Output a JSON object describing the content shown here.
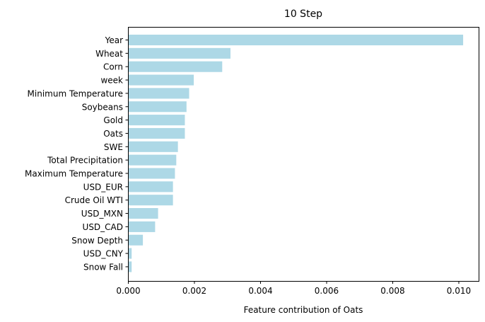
{
  "chart_data": {
    "type": "bar",
    "orientation": "horizontal",
    "title": "10 Step",
    "xlabel": "Feature contribution of Oats",
    "ylabel": "",
    "xlim": [
      0,
      0.01061
    ],
    "xticks": [
      0,
      0.002,
      0.004,
      0.006,
      0.008,
      0.01
    ],
    "xtick_labels": [
      "0.000",
      "0.002",
      "0.004",
      "0.006",
      "0.008",
      "0.010"
    ],
    "grid": false,
    "bar_color": "#add8e6",
    "categories": [
      "Year",
      "Wheat",
      "Corn",
      "week",
      "Minimum Temperature",
      "Soybeans",
      "Gold",
      "Oats",
      "SWE",
      "Total Precipitation",
      "Maximum Temperature",
      "USD_EUR",
      "Crude Oil WTI",
      "USD_MXN",
      "USD_CAD",
      "Snow Depth",
      "USD_CNY",
      "Snow Fall"
    ],
    "values": [
      0.01012,
      0.00308,
      0.00283,
      0.00197,
      0.00183,
      0.00175,
      0.0017,
      0.0017,
      0.00149,
      0.00144,
      0.0014,
      0.00134,
      0.00134,
      0.00089,
      0.0008,
      0.00043,
      9e-05,
      9e-05
    ]
  }
}
